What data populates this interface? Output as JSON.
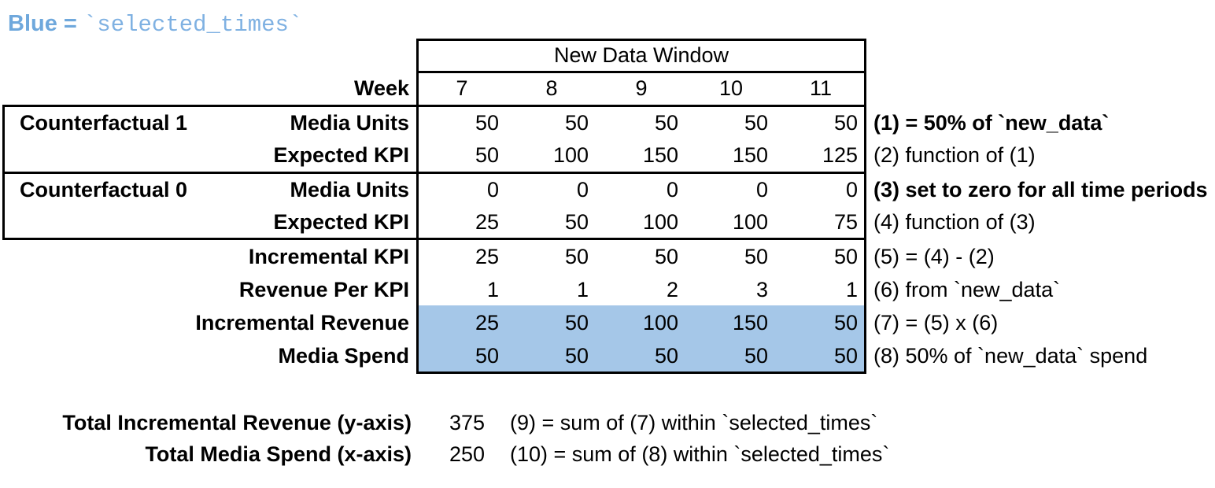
{
  "legend": {
    "prefix": "Blue = ",
    "code": "`selected_times`"
  },
  "colors": {
    "legend_text": "#6FA8DC",
    "legend_code": "#7FB1E2",
    "highlight": "#A5C7E8",
    "border": "#000000"
  },
  "table": {
    "header": {
      "title": "New Data Window",
      "week_label": "Week",
      "weeks": [
        "7",
        "8",
        "9",
        "10",
        "11"
      ]
    },
    "groups": [
      {
        "name": "Counterfactual 1"
      },
      {
        "name": "Counterfactual 0"
      }
    ],
    "rows": [
      {
        "label": "Media Units",
        "values": [
          "50",
          "50",
          "50",
          "50",
          "50"
        ],
        "note": "(1) = 50% of `new_data`"
      },
      {
        "label": "Expected KPI",
        "values": [
          "50",
          "100",
          "150",
          "150",
          "125"
        ],
        "note": "(2) function of (1)"
      },
      {
        "label": "Media Units",
        "values": [
          "0",
          "0",
          "0",
          "0",
          "0"
        ],
        "note": "(3) set to zero for all time periods"
      },
      {
        "label": "Expected KPI",
        "values": [
          "25",
          "50",
          "100",
          "100",
          "75"
        ],
        "note": "(4) function of (3)"
      },
      {
        "label": "Incremental KPI",
        "values": [
          "25",
          "50",
          "50",
          "50",
          "50"
        ],
        "note": "(5) = (4) - (2)"
      },
      {
        "label": "Revenue Per KPI",
        "values": [
          "1",
          "1",
          "2",
          "3",
          "1"
        ],
        "note": "(6) from `new_data`"
      },
      {
        "label": "Incremental Revenue",
        "values": [
          "25",
          "50",
          "100",
          "150",
          "50"
        ],
        "note": "(7) = (5) x (6)"
      },
      {
        "label": "Media Spend",
        "values": [
          "50",
          "50",
          "50",
          "50",
          "50"
        ],
        "note": "(8) 50% of `new_data` spend"
      }
    ]
  },
  "totals": [
    {
      "label": "Total Incremental Revenue (y-axis)",
      "value": "375",
      "note": "(9) = sum of (7) within `selected_times`"
    },
    {
      "label": "Total Media Spend (x-axis)",
      "value": "250",
      "note": "(10) = sum of (8) within `selected_times`"
    }
  ]
}
